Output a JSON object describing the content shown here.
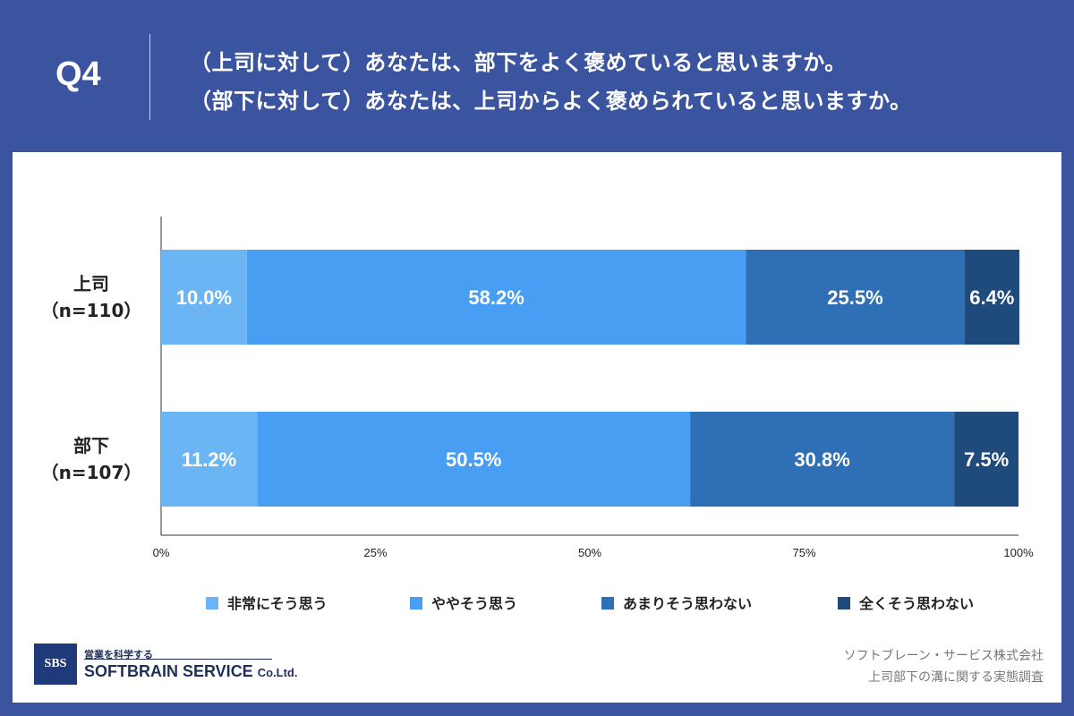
{
  "header": {
    "q_label": "Q4",
    "question_1": "（上司に対して）あなたは、部下をよく褒めていると思いますか。",
    "question_2": "（部下に対して）あなたは、上司からよく褒められていると思いますか。"
  },
  "chart_data": {
    "type": "bar",
    "orientation": "horizontal",
    "stacked": true,
    "categories": [
      "上司（n=110）",
      "部下（n=107）"
    ],
    "category_lines": [
      [
        "上司",
        "（n=110）"
      ],
      [
        "部下",
        "（n=107）"
      ]
    ],
    "series": [
      {
        "name": "非常にそう思う",
        "values": [
          10.0,
          11.2
        ],
        "labels": [
          "10.0%",
          "11.2%"
        ],
        "color": "#6bb5f4"
      },
      {
        "name": "ややそう思う",
        "values": [
          58.2,
          50.5
        ],
        "labels": [
          "58.2%",
          "50.5%"
        ],
        "color": "#479ef2"
      },
      {
        "name": "あまりそう思わない",
        "values": [
          25.5,
          30.8
        ],
        "labels": [
          "25.5%",
          "30.8%"
        ],
        "color": "#2e6fb6"
      },
      {
        "name": "全くそう思わない",
        "values": [
          6.4,
          7.5
        ],
        "labels": [
          "6.4%",
          "7.5%"
        ],
        "color": "#1e4a7c"
      }
    ],
    "xlim": [
      0,
      100
    ],
    "xticks": [
      0,
      25,
      50,
      75,
      100
    ],
    "xtick_labels": [
      "0%",
      "25%",
      "50%",
      "75%",
      "100%"
    ],
    "grid": false,
    "legend_position": "bottom"
  },
  "footer": {
    "logo_badge": "SBS",
    "logo_tagline": "営業を科学する",
    "logo_name": "SOFTBRAIN SERVICE",
    "logo_suffix": "Co.Ltd.",
    "source_company": "ソフトブレーン・サービス株式会社",
    "source_survey": "上司部下の溝に関する実態調査"
  },
  "colors": {
    "background": "#3a54a0",
    "panel": "#ffffff"
  }
}
